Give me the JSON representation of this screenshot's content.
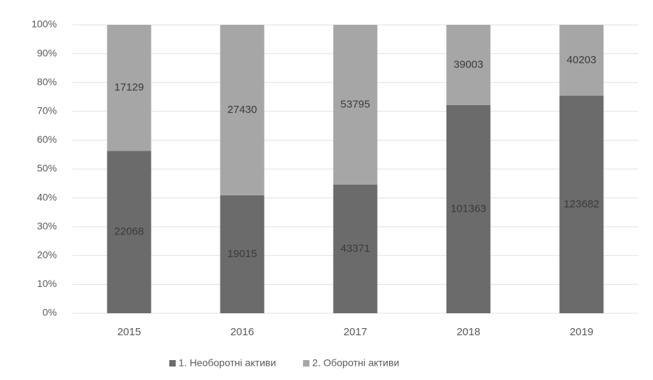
{
  "chart_data": {
    "type": "bar",
    "stacked": "percent",
    "categories": [
      "2015",
      "2016",
      "2017",
      "2018",
      "2019"
    ],
    "series": [
      {
        "name": "1. Необоротні активи",
        "color": "#6b6b6b",
        "values": [
          22068,
          19015,
          43371,
          101363,
          123682
        ]
      },
      {
        "name": "2. Оборотні активи",
        "color": "#a6a6a6",
        "values": [
          17129,
          27430,
          53795,
          39003,
          40203
        ]
      }
    ],
    "ylim": [
      0,
      100
    ],
    "yticks": [
      {
        "value": 0,
        "label": "0%"
      },
      {
        "value": 10,
        "label": "10%"
      },
      {
        "value": 20,
        "label": "20%"
      },
      {
        "value": 30,
        "label": "30%"
      },
      {
        "value": 40,
        "label": "40%"
      },
      {
        "value": 50,
        "label": "50%"
      },
      {
        "value": 60,
        "label": "60%"
      },
      {
        "value": 70,
        "label": "70%"
      },
      {
        "value": 80,
        "label": "80%"
      },
      {
        "value": 90,
        "label": "90%"
      },
      {
        "value": 100,
        "label": "100%"
      }
    ],
    "grid": true,
    "legend": "bottom"
  }
}
